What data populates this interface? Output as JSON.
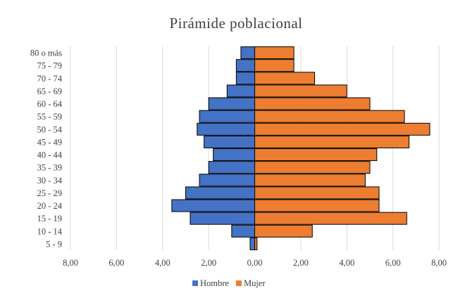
{
  "chart_data": {
    "type": "bar",
    "orientation": "horizontal",
    "layout": "population-pyramid",
    "title": "Pirámide poblacional",
    "categories": [
      "80 o más",
      "75 - 79",
      "70 - 74",
      "65 - 69",
      "60 - 64",
      "55 - 59",
      "50 - 54",
      "45 - 49",
      "40 - 44",
      "35 - 39",
      "30 - 34",
      "25 - 29",
      "20 - 24",
      "15 - 19",
      "10 - 14",
      "5 - 9"
    ],
    "series": [
      {
        "name": "Hombre",
        "color": "#4472c4",
        "side": "left",
        "values": [
          0.6,
          0.8,
          0.8,
          1.2,
          2.0,
          2.4,
          2.5,
          2.2,
          1.8,
          2.0,
          2.4,
          3.0,
          3.6,
          2.8,
          1.0,
          0.2
        ]
      },
      {
        "name": "Mujer",
        "color": "#ed7d31",
        "side": "right",
        "values": [
          1.7,
          1.7,
          2.6,
          4.0,
          5.0,
          6.5,
          7.6,
          6.7,
          5.3,
          5.0,
          4.8,
          5.4,
          5.4,
          6.6,
          2.5,
          0.1
        ]
      }
    ],
    "xlim": [
      -8,
      8
    ],
    "x_ticks": [
      "8,00",
      "6,00",
      "4,00",
      "2,00",
      "0,00",
      "2,00",
      "4,00",
      "6,00",
      "8,00"
    ],
    "grid": true,
    "legend_position": "bottom"
  }
}
